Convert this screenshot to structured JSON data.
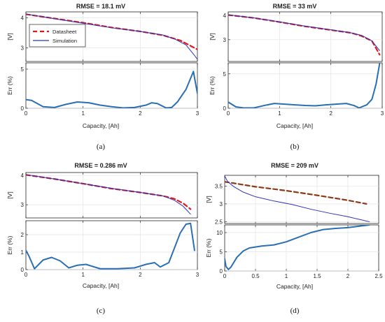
{
  "chart_data": [
    {
      "id": "a",
      "panel_label": "(a)",
      "type": "line",
      "title": "RMSE = 18.1 mV",
      "xlabel": "Capacity, [Ah]",
      "xlim": [
        0,
        3
      ],
      "xticks": [
        0,
        1,
        2,
        3
      ],
      "top": {
        "ylabel": "[V]",
        "ylim": [
          2.55,
          4.2
        ],
        "yticks": [
          3,
          4
        ],
        "legend": {
          "position": "top-left",
          "entries": [
            "Datasheet",
            "Simulation"
          ]
        },
        "series": [
          {
            "name": "Datasheet",
            "style": "dashed",
            "color": "#e0191f",
            "x": [
              0,
              0.5,
              1,
              1.5,
              2,
              2.4,
              2.7,
              2.9,
              3.0
            ],
            "y": [
              4.12,
              3.98,
              3.84,
              3.68,
              3.55,
              3.42,
              3.25,
              3.05,
              2.95
            ]
          },
          {
            "name": "Simulation",
            "style": "solid",
            "color": "#2a34b8",
            "x": [
              0,
              0.5,
              1,
              1.5,
              2,
              2.4,
              2.6,
              2.8,
              2.95,
              3.0
            ],
            "y": [
              4.13,
              3.97,
              3.82,
              3.67,
              3.55,
              3.43,
              3.3,
              3.1,
              2.75,
              2.62
            ]
          }
        ]
      },
      "bottom": {
        "ylabel": "Err (%)",
        "ylim": [
          0,
          5.8
        ],
        "yticks": [
          0,
          5
        ],
        "series": [
          {
            "name": "",
            "color": "#2a6fb4",
            "x": [
              0,
              0.1,
              0.3,
              0.5,
              0.7,
              0.9,
              1.1,
              1.3,
              1.5,
              1.7,
              1.9,
              2.1,
              2.2,
              2.3,
              2.45,
              2.55,
              2.65,
              2.8,
              2.93,
              3.0
            ],
            "y": [
              1.1,
              1.0,
              0.2,
              0.1,
              0.5,
              0.8,
              0.7,
              0.4,
              0.2,
              0.05,
              0.1,
              0.4,
              0.7,
              0.6,
              0.05,
              0.1,
              0.8,
              2.4,
              4.7,
              1.9
            ]
          }
        ]
      }
    },
    {
      "id": "b",
      "panel_label": "(b)",
      "type": "line",
      "title": "RMSE = 33 mV",
      "xlabel": "Capacity, [Ah]",
      "xlim": [
        0,
        3
      ],
      "xticks": [
        0,
        1,
        2,
        3
      ],
      "top": {
        "ylabel": "[V]",
        "ylim": [
          2.1,
          4.15
        ],
        "yticks": [
          3,
          4
        ],
        "series": [
          {
            "name": "Datasheet",
            "style": "dashed",
            "color": "#e0191f",
            "x": [
              0,
              0.5,
              1,
              1.5,
              2,
              2.4,
              2.6,
              2.8,
              2.95
            ],
            "y": [
              4.02,
              3.9,
              3.73,
              3.55,
              3.4,
              3.28,
              3.15,
              2.95,
              2.38
            ]
          },
          {
            "name": "Simulation",
            "style": "solid",
            "color": "#2a34b8",
            "x": [
              0,
              0.5,
              1,
              1.5,
              2,
              2.4,
              2.6,
              2.8,
              2.95
            ],
            "y": [
              4.03,
              3.9,
              3.74,
              3.56,
              3.41,
              3.28,
              3.18,
              2.95,
              2.55
            ]
          }
        ]
      },
      "bottom": {
        "ylabel": "Err (%)",
        "ylim": [
          0,
          6.6
        ],
        "yticks": [
          0,
          5
        ],
        "series": [
          {
            "name": "",
            "color": "#2a6fb4",
            "x": [
              0,
              0.15,
              0.3,
              0.5,
              0.7,
              0.9,
              1.1,
              1.3,
              1.5,
              1.7,
              1.9,
              2.1,
              2.3,
              2.45,
              2.55,
              2.7,
              2.8,
              2.88,
              2.95
            ],
            "y": [
              0.9,
              0.2,
              0.05,
              0.05,
              0.4,
              0.7,
              0.6,
              0.5,
              0.4,
              0.35,
              0.5,
              0.6,
              0.7,
              0.4,
              0.05,
              0.5,
              1.3,
              3.5,
              6.5
            ]
          }
        ]
      }
    },
    {
      "id": "c",
      "panel_label": "(c)",
      "type": "line",
      "title": "RMSE = 0.286 mV",
      "xlabel": "Capacity, [Ah]",
      "xlim": [
        0,
        3
      ],
      "xticks": [
        0,
        1,
        2,
        3
      ],
      "top": {
        "ylabel": "[V]",
        "ylim": [
          2.55,
          4.1
        ],
        "yticks": [
          3,
          4
        ],
        "series": [
          {
            "name": "Datasheet",
            "style": "dashed",
            "color": "#e0191f",
            "x": [
              0,
              0.5,
              1,
              1.5,
              2,
              2.4,
              2.6,
              2.75,
              2.88
            ],
            "y": [
              4.02,
              3.88,
              3.72,
              3.55,
              3.42,
              3.3,
              3.2,
              3.05,
              2.85
            ]
          },
          {
            "name": "Simulation",
            "style": "solid",
            "color": "#2a34b8",
            "x": [
              0,
              0.5,
              1,
              1.5,
              2,
              2.4,
              2.6,
              2.75,
              2.88
            ],
            "y": [
              4.03,
              3.88,
              3.72,
              3.56,
              3.42,
              3.3,
              3.15,
              2.95,
              2.68
            ]
          }
        ]
      },
      "bottom": {
        "ylabel": "Err (%)",
        "ylim": [
          0,
          2.8
        ],
        "yticks": [
          0,
          1,
          2
        ],
        "series": [
          {
            "name": "",
            "color": "#2a6fb4",
            "x": [
              0,
              0.05,
              0.15,
              0.3,
              0.45,
              0.6,
              0.75,
              0.9,
              1.05,
              1.3,
              1.6,
              1.9,
              2.1,
              2.25,
              2.35,
              2.5,
              2.7,
              2.8,
              2.88,
              2.95
            ],
            "y": [
              1.1,
              0.8,
              0.05,
              0.55,
              0.7,
              0.5,
              0.1,
              0.25,
              0.3,
              0.05,
              0.05,
              0.1,
              0.3,
              0.4,
              0.15,
              0.4,
              2.1,
              2.6,
              2.65,
              1.1
            ]
          }
        ]
      }
    },
    {
      "id": "d",
      "panel_label": "(d)",
      "type": "line",
      "title": "RMSE = 209 mV",
      "xlabel": "Capacity, [Ah]",
      "xlim": [
        0,
        2.5
      ],
      "xticks": [
        0,
        0.5,
        1,
        1.5,
        2,
        2.5
      ],
      "top": {
        "ylabel": "[V]",
        "ylim": [
          2.45,
          3.8
        ],
        "yticks": [
          2.5,
          3,
          3.5
        ],
        "series": [
          {
            "name": "Datasheet",
            "style": "dashed",
            "color": "#8b3a1a",
            "x": [
              0,
              0.25,
              0.5,
              1,
              1.5,
              2,
              2.3
            ],
            "y": [
              3.62,
              3.55,
              3.48,
              3.37,
              3.24,
              3.1,
              3.0
            ]
          },
          {
            "name": "Simulation",
            "style": "solid",
            "color": "#2a34b8",
            "x": [
              0,
              0.05,
              0.15,
              0.3,
              0.5,
              0.8,
              1.1,
              1.4,
              1.7,
              2.0,
              2.2,
              2.35
            ],
            "y": [
              3.78,
              3.62,
              3.48,
              3.33,
              3.2,
              3.08,
              2.98,
              2.85,
              2.74,
              2.64,
              2.56,
              2.5
            ]
          }
        ]
      },
      "bottom": {
        "ylabel": "Err (%)",
        "ylim": [
          0,
          12
        ],
        "yticks": [
          0,
          5,
          10
        ],
        "series": [
          {
            "name": "",
            "color": "#2a6fb4",
            "x": [
              0,
              0.02,
              0.06,
              0.1,
              0.2,
              0.3,
              0.4,
              0.6,
              0.8,
              1.0,
              1.2,
              1.4,
              1.6,
              1.8,
              2.0,
              2.2,
              2.35
            ],
            "y": [
              3.2,
              1.2,
              0.4,
              1.0,
              3.6,
              5.2,
              6.0,
              6.5,
              6.8,
              7.6,
              8.8,
              10.0,
              10.8,
              11.1,
              11.3,
              11.7,
              12.0
            ]
          }
        ]
      }
    }
  ]
}
